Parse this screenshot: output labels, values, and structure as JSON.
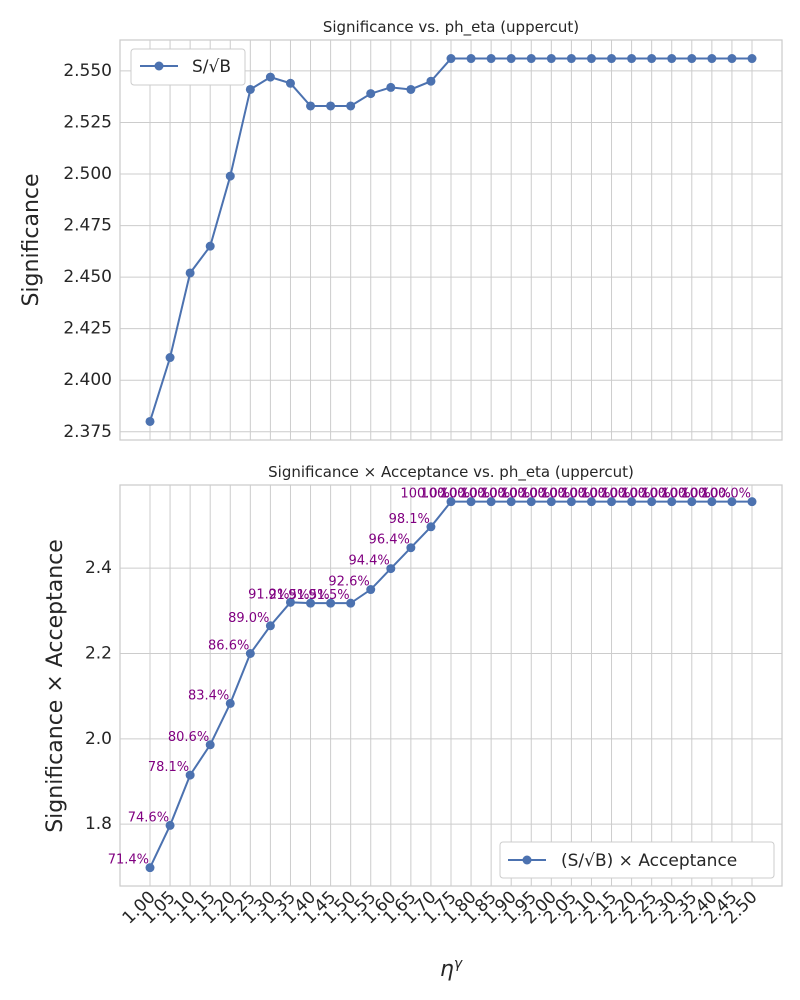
{
  "colors": {
    "series": "#4c72b0",
    "annotation": "#800080",
    "grid": "#cccccc",
    "text": "#262626"
  },
  "chart_data": [
    {
      "type": "line",
      "title": "Significance vs. ph_eta (uppercut)",
      "xlabel": "",
      "ylabel": "Significance",
      "grid": true,
      "legend_position": "top-left",
      "x": [
        "1.00",
        "1.05",
        "1.10",
        "1.15",
        "1.20",
        "1.25",
        "1.30",
        "1.35",
        "1.40",
        "1.45",
        "1.50",
        "1.55",
        "1.60",
        "1.65",
        "1.70",
        "1.75",
        "1.80",
        "1.85",
        "1.90",
        "1.95",
        "2.00",
        "2.05",
        "2.10",
        "2.15",
        "2.20",
        "2.25",
        "2.30",
        "2.35",
        "2.40",
        "2.45",
        "2.50"
      ],
      "ylim": [
        2.371,
        2.565
      ],
      "yticks": [
        "2.375",
        "2.400",
        "2.425",
        "2.450",
        "2.475",
        "2.500",
        "2.525",
        "2.550"
      ],
      "series": [
        {
          "name": "S/√B",
          "values": [
            2.38,
            2.411,
            2.452,
            2.465,
            2.499,
            2.541,
            2.547,
            2.544,
            2.533,
            2.533,
            2.533,
            2.539,
            2.542,
            2.541,
            2.545,
            2.556,
            2.556,
            2.556,
            2.556,
            2.556,
            2.556,
            2.556,
            2.556,
            2.556,
            2.556,
            2.556,
            2.556,
            2.556,
            2.556,
            2.556,
            2.556
          ]
        }
      ]
    },
    {
      "type": "line",
      "title": "Significance × Acceptance vs. ph_eta (uppercut)",
      "xlabel": "η^γ",
      "ylabel": "Significance × Acceptance",
      "grid": true,
      "legend_position": "bottom-right",
      "x": [
        "1.00",
        "1.05",
        "1.10",
        "1.15",
        "1.20",
        "1.25",
        "1.30",
        "1.35",
        "1.40",
        "1.45",
        "1.50",
        "1.55",
        "1.60",
        "1.65",
        "1.70",
        "1.75",
        "1.80",
        "1.85",
        "1.90",
        "1.95",
        "2.00",
        "2.05",
        "2.10",
        "2.15",
        "2.20",
        "2.25",
        "2.30",
        "2.35",
        "2.40",
        "2.45",
        "2.50"
      ],
      "ylim": [
        1.655,
        2.595
      ],
      "yticks": [
        "1.8",
        "2.0",
        "2.2",
        "2.4"
      ],
      "series": [
        {
          "name": "(S/√B) × Acceptance",
          "values": [
            1.698,
            1.797,
            1.915,
            1.986,
            2.083,
            2.2,
            2.265,
            2.32,
            2.318,
            2.318,
            2.318,
            2.35,
            2.399,
            2.448,
            2.497,
            2.556,
            2.556,
            2.556,
            2.556,
            2.556,
            2.556,
            2.556,
            2.556,
            2.556,
            2.556,
            2.556,
            2.556,
            2.556,
            2.556,
            2.556,
            2.556
          ]
        }
      ],
      "annotations": [
        "71.4%",
        "74.6%",
        "78.1%",
        "80.6%",
        "83.4%",
        "86.6%",
        "89.0%",
        "91.2%",
        "91.5%",
        "91.5%",
        "91.5%",
        "92.6%",
        "94.4%",
        "96.4%",
        "98.1%",
        "100.0%",
        "100.0%",
        "100.0%",
        "100.0%",
        "100.0%",
        "100.0%",
        "100.0%",
        "100.0%",
        "100.0%",
        "100.0%",
        "100.0%",
        "100.0%",
        "100.0%",
        "100.0%",
        "100.0%",
        "100.0%"
      ]
    }
  ]
}
